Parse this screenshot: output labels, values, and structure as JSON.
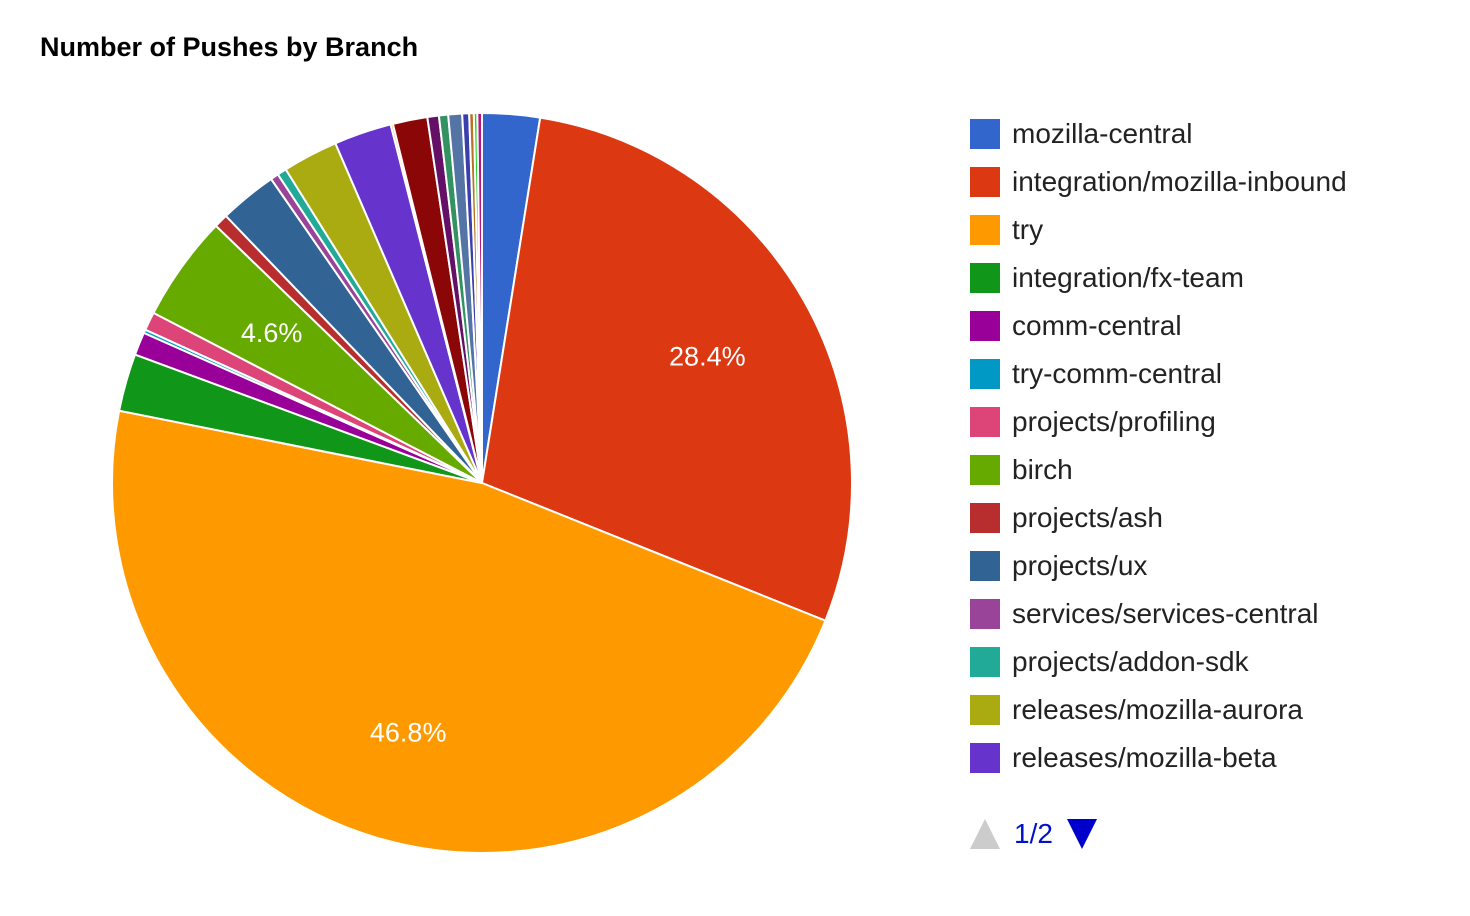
{
  "chart_data": {
    "type": "pie",
    "title": "Number of Pushes by Branch",
    "slices": [
      {
        "label": "mozilla-central",
        "value": 2.5,
        "color": "#3366cc"
      },
      {
        "label": "integration/mozilla-inbound",
        "value": 28.4,
        "color": "#dc3912",
        "data_label": "28.4%"
      },
      {
        "label": "try",
        "value": 46.8,
        "color": "#ff9900",
        "data_label": "46.8%"
      },
      {
        "label": "integration/fx-team",
        "value": 2.5,
        "color": "#109618"
      },
      {
        "label": "comm-central",
        "value": 1.0,
        "color": "#990099"
      },
      {
        "label": "try-comm-central",
        "value": 0.15,
        "color": "#0099c6"
      },
      {
        "label": "projects/profiling",
        "value": 0.8,
        "color": "#dd4477"
      },
      {
        "label": "birch",
        "value": 4.6,
        "color": "#66aa00",
        "data_label": "4.6%"
      },
      {
        "label": "projects/ash",
        "value": 0.6,
        "color": "#b82e2e"
      },
      {
        "label": "projects/ux",
        "value": 2.5,
        "color": "#316395"
      },
      {
        "label": "services/services-central",
        "value": 0.35,
        "color": "#994499"
      },
      {
        "label": "projects/addon-sdk",
        "value": 0.4,
        "color": "#22aa99"
      },
      {
        "label": "releases/mozilla-aurora",
        "value": 2.4,
        "color": "#aaaa11"
      },
      {
        "label": "releases/mozilla-beta",
        "value": 2.5,
        "color": "#6633cc"
      },
      {
        "label": "",
        "value": 0.1,
        "color": "#e67300"
      },
      {
        "label": "",
        "value": 1.5,
        "color": "#8b0707"
      },
      {
        "label": "",
        "value": 0.5,
        "color": "#651067"
      },
      {
        "label": "",
        "value": 0.4,
        "color": "#329262"
      },
      {
        "label": "",
        "value": 0.6,
        "color": "#5574a6"
      },
      {
        "label": "",
        "value": 0.3,
        "color": "#3b3eac"
      },
      {
        "label": "",
        "value": 0.2,
        "color": "#b77322"
      },
      {
        "label": "",
        "value": 0.15,
        "color": "#16d620"
      },
      {
        "label": "",
        "value": 0.2,
        "color": "#b91383"
      }
    ],
    "legend": {
      "position": "right",
      "items": [
        {
          "label": "mozilla-central",
          "color": "#3366cc"
        },
        {
          "label": "integration/mozilla-inbound",
          "color": "#dc3912"
        },
        {
          "label": "try",
          "color": "#ff9900"
        },
        {
          "label": "integration/fx-team",
          "color": "#109618"
        },
        {
          "label": "comm-central",
          "color": "#990099"
        },
        {
          "label": "try-comm-central",
          "color": "#0099c6"
        },
        {
          "label": "projects/profiling",
          "color": "#dd4477"
        },
        {
          "label": "birch",
          "color": "#66aa00"
        },
        {
          "label": "projects/ash",
          "color": "#b82e2e"
        },
        {
          "label": "projects/ux",
          "color": "#316395"
        },
        {
          "label": "services/services-central",
          "color": "#994499"
        },
        {
          "label": "projects/addon-sdk",
          "color": "#22aa99"
        },
        {
          "label": "releases/mozilla-aurora",
          "color": "#aaaa11"
        },
        {
          "label": "releases/mozilla-beta",
          "color": "#6633cc"
        }
      ],
      "page_indicator": "1/2"
    }
  }
}
